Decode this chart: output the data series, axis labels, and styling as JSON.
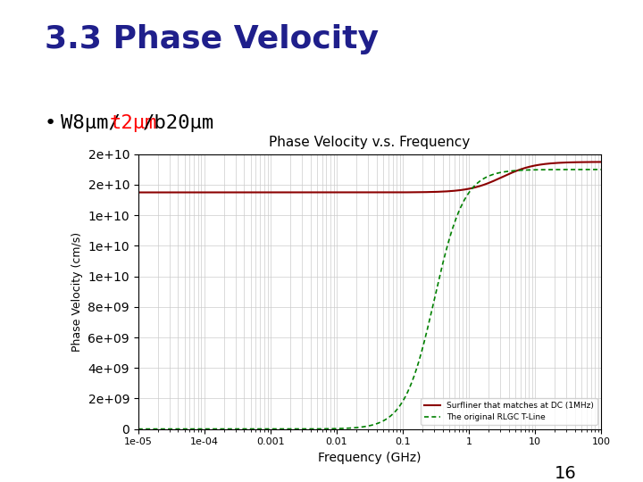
{
  "title": "3.3 Phase Velocity",
  "bullet_text_parts": [
    "W8μm/",
    "t2μm",
    "/b20μm"
  ],
  "bullet_colors": [
    "black",
    "red",
    "black"
  ],
  "chart_title": "Phase Velocity v.s. Frequency",
  "xlabel": "Frequency (GHz)",
  "ylabel": "Phase Velocity (cm/s)",
  "ylim": [
    0,
    18000000000.0
  ],
  "xlim_log": [
    -5,
    2
  ],
  "freq_min": 1e-05,
  "freq_max": 100,
  "page_number": "16",
  "title_color": "#1F1F8B",
  "bar_color": "#8B0000",
  "legend_line1": "Surfliner that matches at DC (1MHz)",
  "legend_line2": "The original RLGC T-Line",
  "bg_color": "#f8f8f8",
  "plot_bg": "#ffffff"
}
